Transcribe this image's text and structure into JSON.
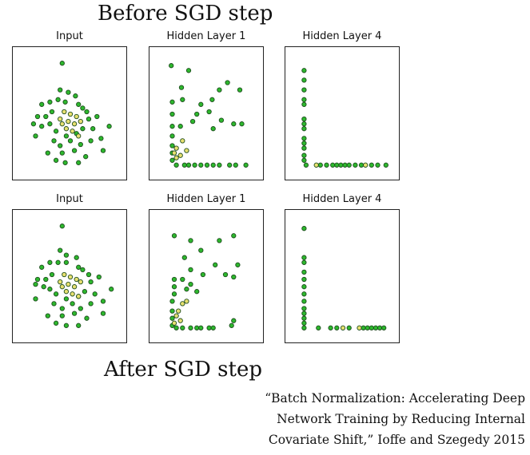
{
  "title_before": "Before SGD step",
  "title_after": "After SGD step",
  "citation": {
    "line1": "“Batch Normalization: Accelerating Deep",
    "line2": "Network Training by Reducing Internal",
    "line3": "Covariate Shift,” Ioffe and Szegedy 2015"
  },
  "colors": {
    "outer": "#2db82d",
    "inner": "#e8e070",
    "edge": "#1e4d1e"
  },
  "chart_data": [
    {
      "type": "scatter",
      "row": "before",
      "title": "Input",
      "grid": false,
      "xlim": [
        0,
        100
      ],
      "ylim": [
        0,
        100
      ],
      "series": [
        {
          "class": "outer",
          "points": [
            [
              42,
              92
            ],
            [
              40,
              70
            ],
            [
              48,
              68
            ],
            [
              55,
              65
            ],
            [
              30,
              60
            ],
            [
              38,
              62
            ],
            [
              45,
              60
            ],
            [
              58,
              58
            ],
            [
              62,
              55
            ],
            [
              22,
              58
            ],
            [
              32,
              52
            ],
            [
              66,
              52
            ],
            [
              18,
              48
            ],
            [
              26,
              48
            ],
            [
              68,
              46
            ],
            [
              76,
              48
            ],
            [
              14,
              42
            ],
            [
              22,
              40
            ],
            [
              30,
              42
            ],
            [
              36,
              36
            ],
            [
              46,
              32
            ],
            [
              56,
              34
            ],
            [
              62,
              38
            ],
            [
              72,
              38
            ],
            [
              88,
              40
            ],
            [
              16,
              32
            ],
            [
              34,
              28
            ],
            [
              40,
              24
            ],
            [
              50,
              28
            ],
            [
              60,
              25
            ],
            [
              70,
              28
            ],
            [
              80,
              30
            ],
            [
              28,
              18
            ],
            [
              42,
              18
            ],
            [
              54,
              20
            ],
            [
              65,
              15
            ],
            [
              82,
              20
            ],
            [
              45,
              10
            ],
            [
              58,
              10
            ],
            [
              36,
              12
            ]
          ]
        },
        {
          "class": "inner",
          "points": [
            [
              44,
              52
            ],
            [
              50,
              50
            ],
            [
              56,
              48
            ],
            [
              40,
              46
            ],
            [
              48,
              44
            ],
            [
              54,
              42
            ],
            [
              60,
              44
            ],
            [
              46,
              38
            ],
            [
              52,
              36
            ],
            [
              58,
              32
            ],
            [
              42,
              42
            ]
          ]
        }
      ]
    },
    {
      "type": "scatter",
      "row": "before",
      "title": "Hidden Layer 1",
      "grid": false,
      "xlim": [
        0,
        100
      ],
      "ylim": [
        0,
        100
      ],
      "series": [
        {
          "class": "outer",
          "points": [
            [
              15,
              90
            ],
            [
              32,
              86
            ],
            [
              25,
              72
            ],
            [
              70,
              76
            ],
            [
              82,
              70
            ],
            [
              62,
              70
            ],
            [
              26,
              62
            ],
            [
              55,
              62
            ],
            [
              44,
              58
            ],
            [
              40,
              50
            ],
            [
              52,
              52
            ],
            [
              36,
              44
            ],
            [
              64,
              45
            ],
            [
              76,
              42
            ],
            [
              84,
              42
            ],
            [
              56,
              38
            ],
            [
              16,
              60
            ],
            [
              16,
              50
            ],
            [
              16,
              40
            ],
            [
              16,
              32
            ],
            [
              16,
              24
            ],
            [
              16,
              18
            ],
            [
              16,
              12
            ],
            [
              20,
              8
            ],
            [
              28,
              8
            ],
            [
              32,
              8
            ],
            [
              38,
              8
            ],
            [
              44,
              8
            ],
            [
              50,
              8
            ],
            [
              56,
              8
            ],
            [
              62,
              8
            ],
            [
              72,
              8
            ],
            [
              78,
              8
            ],
            [
              88,
              8
            ],
            [
              24,
              40
            ]
          ]
        },
        {
          "class": "inner",
          "points": [
            [
              20,
              22
            ],
            [
              24,
              16
            ],
            [
              30,
              20
            ],
            [
              20,
              14
            ],
            [
              26,
              28
            ],
            [
              18,
              18
            ]
          ]
        }
      ]
    },
    {
      "type": "scatter",
      "row": "before",
      "title": "Hidden Layer 4",
      "grid": false,
      "xlim": [
        0,
        100
      ],
      "ylim": [
        0,
        100
      ],
      "series": [
        {
          "class": "outer",
          "points": [
            [
              12,
              86
            ],
            [
              12,
              78
            ],
            [
              12,
              70
            ],
            [
              12,
              62
            ],
            [
              12,
              58
            ],
            [
              12,
              46
            ],
            [
              12,
              42
            ],
            [
              12,
              38
            ],
            [
              12,
              30
            ],
            [
              12,
              26
            ],
            [
              12,
              22
            ],
            [
              12,
              16
            ],
            [
              12,
              12
            ],
            [
              14,
              8
            ],
            [
              28,
              8
            ],
            [
              34,
              8
            ],
            [
              40,
              8
            ],
            [
              44,
              8
            ],
            [
              48,
              8
            ],
            [
              52,
              8
            ],
            [
              56,
              8
            ],
            [
              62,
              8
            ],
            [
              68,
              8
            ],
            [
              78,
              8
            ],
            [
              84,
              8
            ],
            [
              92,
              8
            ]
          ]
        },
        {
          "class": "inner",
          "points": [
            [
              72,
              8
            ],
            [
              24,
              8
            ]
          ]
        }
      ]
    },
    {
      "type": "scatter",
      "row": "after",
      "title": "Input",
      "grid": false,
      "xlim": [
        0,
        100
      ],
      "ylim": [
        0,
        100
      ],
      "series": [
        {
          "class": "outer",
          "points": [
            [
              42,
              92
            ],
            [
              40,
              72
            ],
            [
              46,
              68
            ],
            [
              56,
              66
            ],
            [
              30,
              62
            ],
            [
              38,
              62
            ],
            [
              46,
              62
            ],
            [
              58,
              58
            ],
            [
              62,
              56
            ],
            [
              22,
              58
            ],
            [
              32,
              52
            ],
            [
              68,
              52
            ],
            [
              18,
              48
            ],
            [
              26,
              48
            ],
            [
              70,
              46
            ],
            [
              78,
              50
            ],
            [
              16,
              44
            ],
            [
              24,
              42
            ],
            [
              30,
              40
            ],
            [
              36,
              36
            ],
            [
              46,
              32
            ],
            [
              58,
              34
            ],
            [
              64,
              38
            ],
            [
              74,
              36
            ],
            [
              90,
              40
            ],
            [
              16,
              32
            ],
            [
              34,
              28
            ],
            [
              42,
              24
            ],
            [
              52,
              28
            ],
            [
              60,
              24
            ],
            [
              70,
              28
            ],
            [
              82,
              30
            ],
            [
              28,
              18
            ],
            [
              42,
              18
            ],
            [
              54,
              20
            ],
            [
              66,
              16
            ],
            [
              82,
              20
            ],
            [
              46,
              10
            ],
            [
              58,
              10
            ],
            [
              36,
              12
            ]
          ]
        },
        {
          "class": "inner",
          "points": [
            [
              44,
              52
            ],
            [
              50,
              50
            ],
            [
              56,
              48
            ],
            [
              40,
              46
            ],
            [
              48,
              44
            ],
            [
              54,
              42
            ],
            [
              60,
              46
            ],
            [
              46,
              38
            ],
            [
              52,
              36
            ],
            [
              58,
              34
            ],
            [
              42,
              42
            ]
          ]
        }
      ]
    },
    {
      "type": "scatter",
      "row": "after",
      "title": "Hidden Layer 1",
      "grid": false,
      "xlim": [
        0,
        100
      ],
      "ylim": [
        0,
        100
      ],
      "series": [
        {
          "class": "outer",
          "points": [
            [
              18,
              84
            ],
            [
              34,
              80
            ],
            [
              28,
              66
            ],
            [
              76,
              84
            ],
            [
              62,
              80
            ],
            [
              44,
              72
            ],
            [
              58,
              60
            ],
            [
              34,
              56
            ],
            [
              46,
              52
            ],
            [
              80,
              60
            ],
            [
              68,
              52
            ],
            [
              76,
              50
            ],
            [
              34,
              44
            ],
            [
              26,
              48
            ],
            [
              18,
              48
            ],
            [
              18,
              42
            ],
            [
              30,
              40
            ],
            [
              40,
              38
            ],
            [
              18,
              36
            ],
            [
              16,
              30
            ],
            [
              16,
              22
            ],
            [
              16,
              16
            ],
            [
              16,
              10
            ],
            [
              20,
              8
            ],
            [
              26,
              8
            ],
            [
              34,
              8
            ],
            [
              40,
              8
            ],
            [
              44,
              8
            ],
            [
              52,
              8
            ],
            [
              56,
              8
            ],
            [
              74,
              10
            ],
            [
              76,
              14
            ]
          ]
        },
        {
          "class": "inner",
          "points": [
            [
              22,
              22
            ],
            [
              26,
              28
            ],
            [
              20,
              18
            ],
            [
              30,
              30
            ],
            [
              24,
              14
            ],
            [
              18,
              12
            ]
          ]
        }
      ]
    },
    {
      "type": "scatter",
      "row": "after",
      "title": "Hidden Layer 4",
      "grid": false,
      "xlim": [
        0,
        100
      ],
      "ylim": [
        0,
        100
      ],
      "series": [
        {
          "class": "outer",
          "points": [
            [
              12,
              90
            ],
            [
              12,
              66
            ],
            [
              12,
              62
            ],
            [
              12,
              54
            ],
            [
              12,
              48
            ],
            [
              12,
              42
            ],
            [
              12,
              36
            ],
            [
              12,
              30
            ],
            [
              12,
              24
            ],
            [
              12,
              20
            ],
            [
              12,
              16
            ],
            [
              12,
              12
            ],
            [
              12,
              8
            ],
            [
              26,
              8
            ],
            [
              38,
              8
            ],
            [
              44,
              8
            ],
            [
              56,
              8
            ],
            [
              70,
              8
            ],
            [
              74,
              8
            ],
            [
              78,
              8
            ],
            [
              82,
              8
            ],
            [
              86,
              8
            ],
            [
              90,
              8
            ]
          ]
        },
        {
          "class": "inner",
          "points": [
            [
              50,
              8
            ],
            [
              66,
              8
            ]
          ]
        }
      ]
    }
  ]
}
